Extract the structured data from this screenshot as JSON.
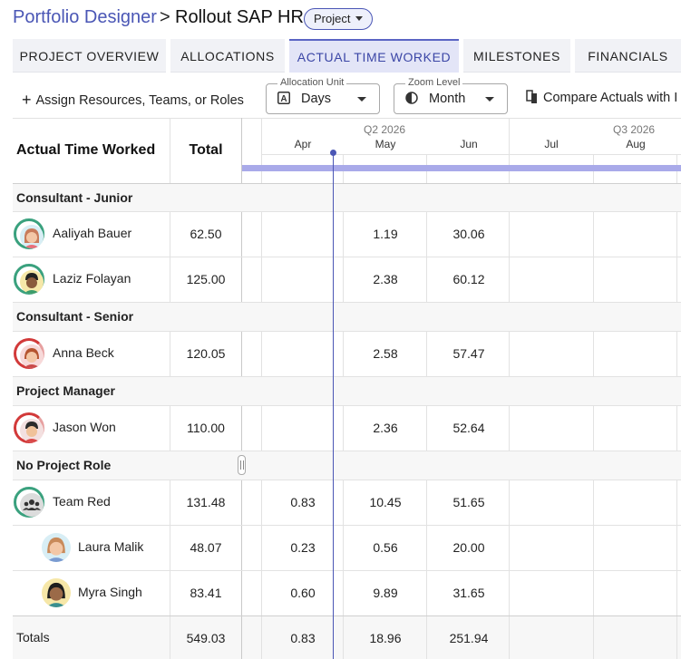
{
  "header": {
    "breadcrumb_link": "Portfolio Designer",
    "separator": ">",
    "title": "Rollout SAP HR",
    "type_pill": "Project"
  },
  "tabs": [
    {
      "label": "PROJECT OVERVIEW",
      "active": false
    },
    {
      "label": "ALLOCATIONS",
      "active": false
    },
    {
      "label": "ACTUAL TIME WORKED",
      "active": true
    },
    {
      "label": "MILESTONES",
      "active": false
    },
    {
      "label": "FINANCIALS",
      "active": false
    }
  ],
  "toolbar": {
    "assign_label": "Assign Resources, Teams, or Roles",
    "allocation_unit": {
      "label": "Allocation Unit",
      "value": "Days"
    },
    "zoom_level": {
      "label": "Zoom Level",
      "value": "Month"
    },
    "compare_label": "Compare Actuals with I"
  },
  "grid": {
    "title": "Actual Time Worked",
    "total_header": "Total",
    "quarters": [
      "Q2 2026",
      "Q3 2026"
    ],
    "months": [
      "Apr",
      "May",
      "Jun",
      "Jul",
      "Aug"
    ],
    "groups": [
      {
        "name": "Consultant - Junior",
        "rows": [
          {
            "name": "Aaliyah Bauer",
            "total": "62.50",
            "apr": "",
            "may": "1.19",
            "jun": "30.06",
            "ring": "#3aa17e"
          },
          {
            "name": "Laziz Folayan",
            "total": "125.00",
            "apr": "",
            "may": "2.38",
            "jun": "60.12",
            "ring": "#3aa17e"
          }
        ]
      },
      {
        "name": "Consultant - Senior",
        "rows": [
          {
            "name": "Anna Beck",
            "total": "120.05",
            "apr": "",
            "may": "2.58",
            "jun": "57.47",
            "ring": "#d23a3a"
          }
        ]
      },
      {
        "name": "Project Manager",
        "rows": [
          {
            "name": "Jason Won",
            "total": "110.00",
            "apr": "",
            "may": "2.36",
            "jun": "52.64",
            "ring": "#d23a3a"
          }
        ]
      },
      {
        "name": "No Project Role",
        "rows": [
          {
            "name": "Team Red",
            "total": "131.48",
            "apr": "0.83",
            "may": "10.45",
            "jun": "51.65",
            "ring": "#3aa17e"
          },
          {
            "name": "Laura Malik",
            "total": "48.07",
            "apr": "0.23",
            "may": "0.56",
            "jun": "20.00"
          },
          {
            "name": "Myra Singh",
            "total": "83.41",
            "apr": "0.60",
            "may": "9.89",
            "jun": "31.65"
          }
        ]
      }
    ],
    "totals": {
      "label": "Totals",
      "total": "549.03",
      "apr": "0.83",
      "may": "18.96",
      "jun": "251.94"
    }
  }
}
